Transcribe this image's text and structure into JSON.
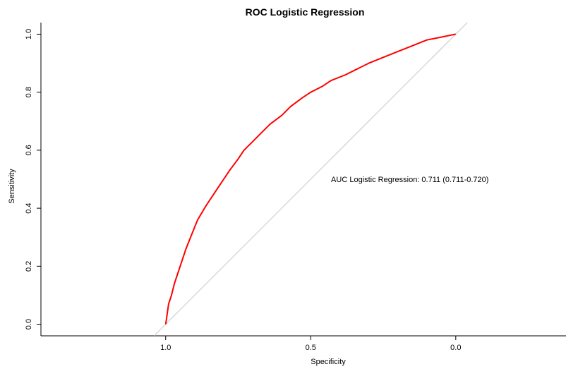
{
  "chart_data": {
    "type": "line",
    "title": "ROC Logistic Regression",
    "xlabel": "Specificity",
    "ylabel": "Sensitivity",
    "xlim": [
      1.43,
      -0.38
    ],
    "ylim": [
      -0.04,
      1.04
    ],
    "x_reversed": true,
    "x_ticks": [
      1.0,
      0.5,
      0.0
    ],
    "x_tick_labels": [
      "1.0",
      "0.5",
      "0.0"
    ],
    "y_ticks": [
      0.0,
      0.2,
      0.4,
      0.6,
      0.8,
      1.0
    ],
    "y_tick_labels": [
      "0.0",
      "0.2",
      "0.4",
      "0.6",
      "0.8",
      "1.0"
    ],
    "grid": false,
    "annotation": "AUC Logistic Regression: 0.711 (0.711-0.720)",
    "annotation_pos": {
      "specificity": 0.43,
      "sensitivity": 0.5
    },
    "series": [
      {
        "color": "#ff0000",
        "x": [
          1.0,
          0.99,
          0.98,
          0.97,
          0.95,
          0.93,
          0.91,
          0.89,
          0.86,
          0.84,
          0.82,
          0.8,
          0.78,
          0.75,
          0.73,
          0.7,
          0.67,
          0.64,
          0.6,
          0.57,
          0.53,
          0.5,
          0.46,
          0.43,
          0.38,
          0.34,
          0.3,
          0.25,
          0.2,
          0.15,
          0.1,
          0.05,
          0.0
        ],
        "y": [
          0.0,
          0.07,
          0.1,
          0.14,
          0.2,
          0.26,
          0.31,
          0.36,
          0.41,
          0.44,
          0.47,
          0.5,
          0.53,
          0.57,
          0.6,
          0.63,
          0.66,
          0.69,
          0.72,
          0.75,
          0.78,
          0.8,
          0.82,
          0.84,
          0.86,
          0.88,
          0.9,
          0.92,
          0.94,
          0.96,
          0.98,
          0.99,
          1.0
        ]
      }
    ],
    "reference_line": {
      "color": "#c8c8c8",
      "x": [
        1.04,
        -0.04
      ],
      "y": [
        -0.04,
        1.04
      ]
    }
  }
}
